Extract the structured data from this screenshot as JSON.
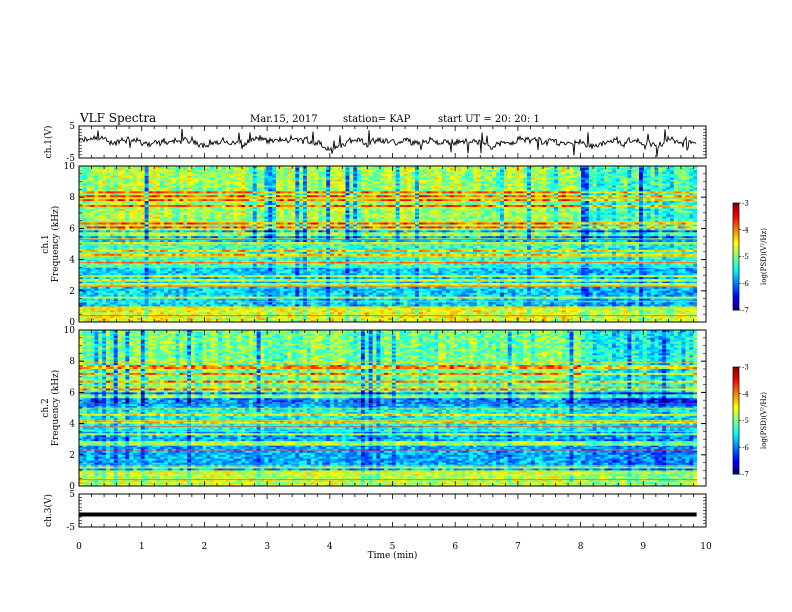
{
  "header": {
    "title": "VLF Spectra",
    "date": "Mar.15, 2017",
    "station": "station= KAP",
    "start": "start  UT =   20: 20: 1"
  },
  "chart_data": [
    {
      "panel": "ch1-voltage",
      "type": "line",
      "ylabel": "ch.1(V)",
      "ylim": [
        -5,
        5
      ],
      "yticks": [
        "5",
        "-5"
      ],
      "xlim": [
        0,
        10
      ],
      "series": [
        {
          "color": "#000000"
        }
      ]
    },
    {
      "panel": "ch1-spectrogram",
      "type": "heatmap",
      "ylabel": "ch.1 Frequency (kHz)",
      "ylim": [
        0,
        10
      ],
      "yticks": [
        "0",
        "2",
        "4",
        "6",
        "8",
        "10"
      ],
      "xlim": [
        0,
        9.85
      ],
      "colorbar": {
        "label": "log(PSD)(V²/Hz)",
        "range": [
          -7,
          -3
        ],
        "ticks": [
          "-3",
          "-4",
          "-5",
          "-6",
          "-7"
        ]
      }
    },
    {
      "panel": "ch2-spectrogram",
      "type": "heatmap",
      "ylabel": "ch.2 Frequency (kHz)",
      "ylim": [
        0,
        10
      ],
      "yticks": [
        "0",
        "2",
        "4",
        "6",
        "8",
        "10"
      ],
      "xlim": [
        0,
        9.85
      ],
      "colorbar": {
        "label": "log(PSD)(V²/Hz)",
        "range": [
          -7,
          -3
        ],
        "ticks": [
          "-3",
          "-4",
          "-5",
          "-6",
          "-7"
        ]
      }
    },
    {
      "panel": "ch3-voltage",
      "type": "line",
      "ylabel": "ch.3(V)",
      "ylim": [
        -5,
        5
      ],
      "yticks": [
        "5",
        "-5"
      ],
      "xlim": [
        0,
        10
      ],
      "series": [
        {
          "color": "#000000",
          "level": -1.2
        }
      ]
    }
  ],
  "xaxis": {
    "label": "Time  (min)",
    "ticks": [
      "0",
      "1",
      "2",
      "3",
      "4",
      "5",
      "6",
      "7",
      "8",
      "9",
      "10"
    ]
  }
}
